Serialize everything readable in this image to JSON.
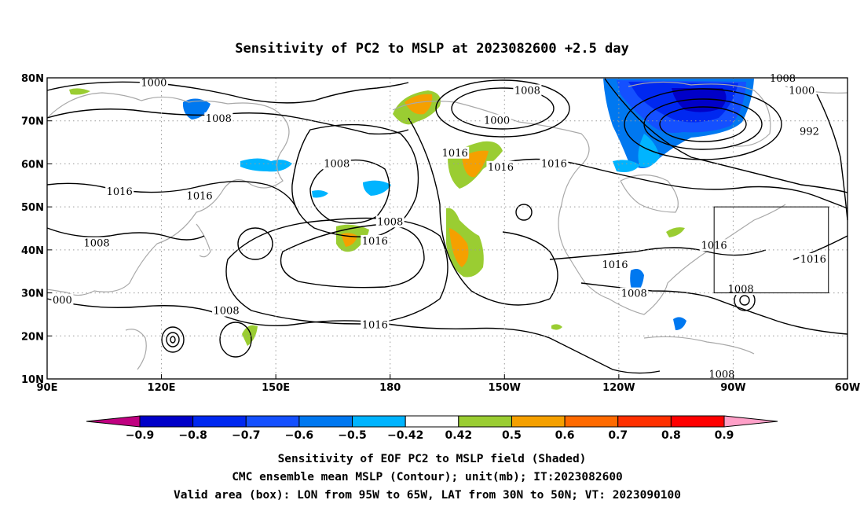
{
  "title": "Sensitivity of PC2 to MSLP at 2023082600 +2.5 day",
  "map": {
    "lon_range": [
      90,
      300
    ],
    "lat_range": [
      10,
      80
    ],
    "lat_ticks": [
      {
        "lat": 80,
        "label": "80N"
      },
      {
        "lat": 70,
        "label": "70N"
      },
      {
        "lat": 60,
        "label": "60N"
      },
      {
        "lat": 50,
        "label": "50N"
      },
      {
        "lat": 40,
        "label": "40N"
      },
      {
        "lat": 30,
        "label": "30N"
      },
      {
        "lat": 20,
        "label": "20N"
      },
      {
        "lat": 10,
        "label": "10N"
      }
    ],
    "lon_ticks": [
      {
        "lon": 90,
        "label": "90E"
      },
      {
        "lon": 120,
        "label": "120E"
      },
      {
        "lon": 150,
        "label": "150E"
      },
      {
        "lon": 180,
        "label": "180"
      },
      {
        "lon": 210,
        "label": "150W"
      },
      {
        "lon": 240,
        "label": "120W"
      },
      {
        "lon": 270,
        "label": "90W"
      },
      {
        "lon": 300,
        "label": "60W"
      }
    ],
    "valid_box": {
      "lon_min": 265,
      "lon_max": 295,
      "lat_min": 30,
      "lat_max": 50
    },
    "contour_labels": [
      {
        "text": "1000",
        "lon": 118,
        "lat": 78.8
      },
      {
        "text": "1008",
        "lon": 135,
        "lat": 70.5
      },
      {
        "text": "1008",
        "lon": 216,
        "lat": 77.0
      },
      {
        "text": "1000",
        "lon": 208,
        "lat": 70.0
      },
      {
        "text": "1008",
        "lon": 283,
        "lat": 79.8
      },
      {
        "text": "1000",
        "lon": 288,
        "lat": 77.0
      },
      {
        "text": "992",
        "lon": 290,
        "lat": 67.5
      },
      {
        "text": "1016",
        "lon": 197,
        "lat": 62.5
      },
      {
        "text": "1016",
        "lon": 209,
        "lat": 59.2
      },
      {
        "text": "1016",
        "lon": 223,
        "lat": 60.0
      },
      {
        "text": "1008",
        "lon": 166,
        "lat": 60.0
      },
      {
        "text": "1016",
        "lon": 109,
        "lat": 53.5
      },
      {
        "text": "1016",
        "lon": 130,
        "lat": 52.5
      },
      {
        "text": "1008",
        "lon": 103,
        "lat": 41.5
      },
      {
        "text": "1008",
        "lon": 180,
        "lat": 46.5
      },
      {
        "text": "1016",
        "lon": 176,
        "lat": 42.0
      },
      {
        "text": "1016",
        "lon": 239,
        "lat": 36.5
      },
      {
        "text": "1016",
        "lon": 265,
        "lat": 41.0
      },
      {
        "text": "1016",
        "lon": 291,
        "lat": 37.8
      },
      {
        "text": "1008",
        "lon": 244,
        "lat": 29.8
      },
      {
        "text": "1008",
        "lon": 272,
        "lat": 30.8
      },
      {
        "text": "1008",
        "lon": 137,
        "lat": 25.8
      },
      {
        "text": "1016",
        "lon": 176,
        "lat": 22.5
      },
      {
        "text": "1008",
        "lon": 267,
        "lat": 11.0
      },
      {
        "text": "000",
        "lon": 94,
        "lat": 28.3
      }
    ]
  },
  "colorbar": {
    "boundaries": [
      "−0.9",
      "−0.8",
      "−0.7",
      "−0.6",
      "−0.5",
      "−0.42",
      "0.42",
      "0.5",
      "0.6",
      "0.7",
      "0.8",
      "0.9"
    ],
    "colors": [
      "#c00080",
      "#0000c8",
      "#0028f0",
      "#1450ff",
      "#0078f0",
      "#00b4ff",
      "#ffffff",
      "#9acd32",
      "#f5a000",
      "#ff6a00",
      "#ff3000",
      "#ff0000",
      "#ffa0c8"
    ]
  },
  "caption": {
    "line1": "Sensitivity of EOF PC2 to MSLP field (Shaded)",
    "line2": "CMC ensemble mean MSLP (Contour); unit(mb); IT:2023082600",
    "line3": "Valid area (box): LON from 95W to 65W, LAT from 30N to 50N; VT: 2023090100"
  }
}
